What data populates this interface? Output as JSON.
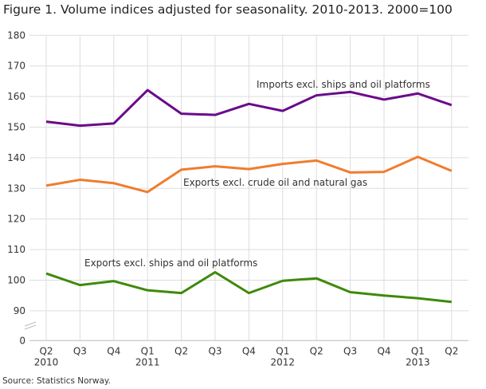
{
  "chart_data": {
    "type": "line",
    "title": "Figure 1. Volume indices adjusted for seasonality. 2010-2013. 2000=100",
    "source": "Source: Statistics Norway.",
    "x": [
      [
        "Q2",
        "2010"
      ],
      [
        "Q3",
        ""
      ],
      [
        "Q4",
        ""
      ],
      [
        "Q1",
        "2011"
      ],
      [
        "Q2",
        ""
      ],
      [
        "Q3",
        ""
      ],
      [
        "Q4",
        ""
      ],
      [
        "Q1",
        "2012"
      ],
      [
        "Q2",
        ""
      ],
      [
        "Q3",
        ""
      ],
      [
        "Q4",
        ""
      ],
      [
        "Q1",
        "2013"
      ],
      [
        "Q2",
        ""
      ]
    ],
    "yticks": [
      0,
      90,
      100,
      110,
      120,
      130,
      140,
      150,
      160,
      170,
      180
    ],
    "ylim": [
      90,
      180
    ],
    "axis_break": "between 0 and 90",
    "grid": true,
    "series": [
      {
        "name": "Imports excl. ships and oil platforms",
        "color": "#6a0a8a",
        "values": [
          151.8,
          150.5,
          151.2,
          162.1,
          154.4,
          154.0,
          157.6,
          155.3,
          160.4,
          161.5,
          159.0,
          161.0,
          157.2
        ]
      },
      {
        "name": "Exports excl. crude oil and natural gas",
        "color": "#ef7d2d",
        "values": [
          130.9,
          132.8,
          131.7,
          128.8,
          136.1,
          137.2,
          136.3,
          138.0,
          139.1,
          135.2,
          135.4,
          140.3,
          135.7
        ]
      },
      {
        "name": "Exports excl. ships and oil platforms",
        "color": "#3e8a0a",
        "values": [
          102.2,
          98.4,
          99.7,
          96.7,
          95.8,
          102.6,
          95.8,
          99.8,
          100.6,
          96.1,
          95.0,
          94.1,
          92.9
        ]
      }
    ]
  }
}
